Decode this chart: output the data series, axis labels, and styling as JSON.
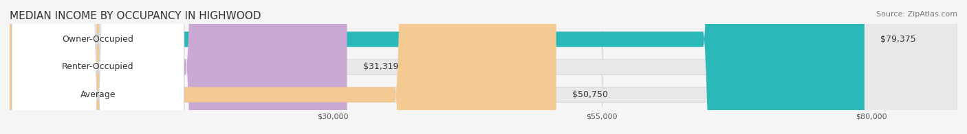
{
  "title": "MEDIAN INCOME BY OCCUPANCY IN HIGHWOOD",
  "source": "Source: ZipAtlas.com",
  "categories": [
    "Owner-Occupied",
    "Renter-Occupied",
    "Average"
  ],
  "values": [
    79375,
    31319,
    50750
  ],
  "labels": [
    "$79,375",
    "$31,319",
    "$50,750"
  ],
  "bar_colors": [
    "#2ab8b8",
    "#c9a8d4",
    "#f5c992"
  ],
  "bar_edge_colors": [
    "#2ab8b8",
    "#c9a8d4",
    "#f5c992"
  ],
  "background_color": "#f5f5f5",
  "bar_bg_color": "#e8e8e8",
  "xmin": 0,
  "xmax": 88000,
  "xticks": [
    30000,
    55000,
    80000
  ],
  "xtick_labels": [
    "$30,000",
    "$55,000",
    "$80,000"
  ],
  "title_fontsize": 11,
  "source_fontsize": 8,
  "label_fontsize": 9,
  "bar_height": 0.55,
  "figsize": [
    14.06,
    1.96
  ],
  "dpi": 100
}
